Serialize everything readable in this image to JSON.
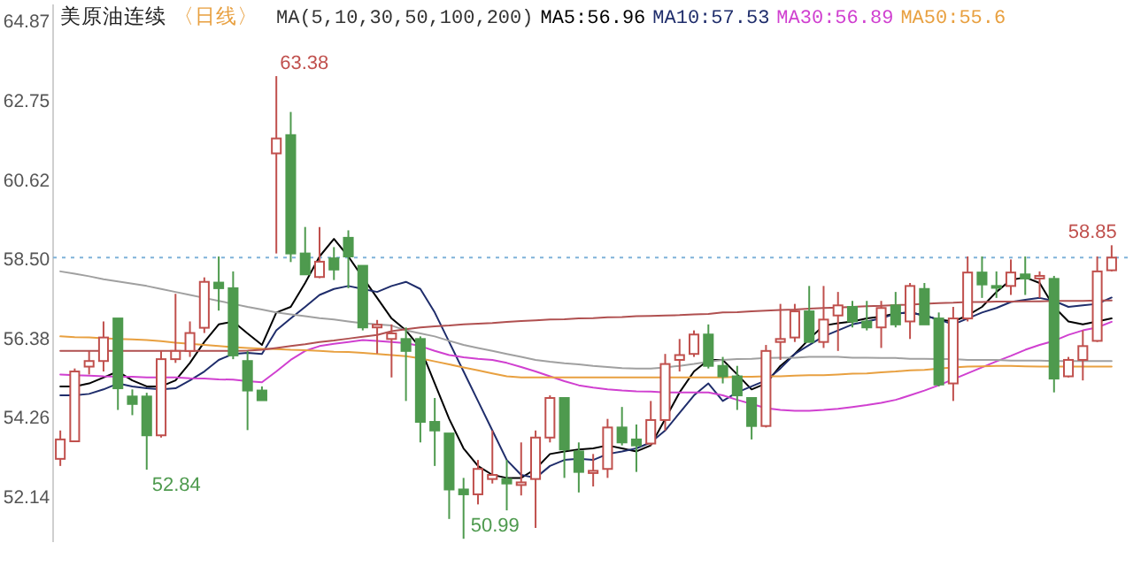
{
  "chart_data": {
    "type": "candlestick",
    "title": "美原油连续",
    "subtitle": "〈日线〉",
    "legend_title": "MA(5,10,30,50,100,200)",
    "legend": "top",
    "categories": [
      null,
      null,
      null,
      null,
      null,
      null,
      null,
      null,
      null,
      null,
      null,
      null,
      null,
      null,
      null,
      null,
      null,
      null,
      null,
      null,
      null,
      null,
      null,
      null,
      null,
      null,
      null,
      null,
      null,
      null,
      null,
      null,
      null,
      null,
      null,
      null,
      null,
      null,
      null,
      null,
      null,
      null,
      null,
      null,
      null,
      null,
      null,
      null,
      null,
      null,
      null,
      null,
      null,
      null,
      null,
      null,
      null,
      null,
      null,
      null,
      null,
      null,
      null,
      null,
      null,
      null,
      null,
      null,
      null,
      null,
      null,
      null,
      null,
      null
    ],
    "ylim": [
      50.9,
      65.3
    ],
    "yticks": [
      64.87,
      62.75,
      60.62,
      {
        "value": 58.5,
        "label": "58.50"
      },
      56.38,
      54.26,
      52.14
    ],
    "ohlc": [
      [
        53.13,
        53.89,
        52.94,
        53.65
      ],
      [
        53.6,
        55.55,
        53.6,
        55.47
      ],
      [
        55.6,
        56.02,
        55.39,
        55.75
      ],
      [
        55.75,
        56.81,
        55.47,
        56.38
      ],
      [
        56.89,
        56.89,
        54.44,
        55.02
      ],
      [
        54.8,
        54.99,
        54.3,
        54.6
      ],
      [
        54.8,
        54.9,
        52.84,
        53.76
      ],
      [
        53.76,
        56.02,
        53.7,
        55.8
      ],
      [
        55.8,
        57.55,
        55.7,
        56.02
      ],
      [
        56.02,
        56.81,
        55.86,
        56.5
      ],
      [
        56.64,
        57.99,
        56.5,
        57.87
      ],
      [
        57.85,
        58.55,
        57.1,
        57.7
      ],
      [
        57.7,
        58.15,
        55.8,
        55.9
      ],
      [
        55.75,
        56.02,
        53.9,
        54.96
      ],
      [
        54.96,
        55.07,
        54.7,
        54.7
      ],
      [
        61.31,
        63.38,
        58.63,
        61.71
      ],
      [
        61.8,
        62.42,
        58.4,
        58.63
      ],
      [
        58.63,
        59.34,
        58.07,
        58.07
      ],
      [
        58.0,
        59.34,
        57.97,
        58.41
      ],
      [
        58.5,
        58.8,
        57.92,
        58.2
      ],
      [
        59.05,
        59.25,
        57.7,
        58.55
      ],
      [
        58.3,
        58.3,
        56.57,
        56.65
      ],
      [
        56.65,
        56.85,
        55.95,
        56.72
      ],
      [
        56.34,
        56.73,
        55.31,
        56.49
      ],
      [
        56.34,
        56.65,
        54.68,
        56.02
      ],
      [
        56.34,
        56.41,
        53.57,
        54.12
      ],
      [
        54.12,
        54.76,
        52.94,
        53.89
      ],
      [
        53.81,
        53.81,
        51.52,
        52.31
      ],
      [
        52.31,
        52.62,
        50.99,
        52.18
      ],
      [
        52.18,
        53.1,
        51.91,
        52.86
      ],
      [
        52.59,
        53.89,
        52.47,
        52.7
      ],
      [
        52.59,
        53.1,
        51.75,
        52.47
      ],
      [
        52.43,
        53.57,
        52.15,
        52.5
      ],
      [
        52.59,
        53.89,
        51.28,
        53.7
      ],
      [
        53.7,
        54.83,
        53.57,
        54.76
      ],
      [
        54.76,
        54.76,
        52.62,
        53.38
      ],
      [
        53.33,
        53.57,
        52.23,
        52.78
      ],
      [
        52.75,
        53.26,
        52.39,
        52.81
      ],
      [
        52.86,
        54.2,
        52.62,
        53.97
      ],
      [
        53.97,
        54.52,
        53.49,
        53.57
      ],
      [
        53.65,
        54.05,
        52.78,
        53.49
      ],
      [
        53.54,
        54.68,
        53.49,
        54.17
      ],
      [
        54.17,
        55.94,
        53.89,
        55.67
      ],
      [
        55.78,
        56.34,
        55.47,
        55.91
      ],
      [
        55.94,
        56.57,
        55.86,
        56.46
      ],
      [
        56.46,
        56.73,
        55.55,
        55.62
      ],
      [
        55.62,
        55.86,
        55.15,
        55.34
      ],
      [
        55.34,
        55.62,
        54.44,
        54.83
      ],
      [
        54.76,
        54.76,
        53.65,
        54.01
      ],
      [
        54.01,
        56.18,
        53.97,
        56.02
      ],
      [
        56.26,
        57.28,
        55.78,
        56.34
      ],
      [
        56.38,
        57.28,
        56.26,
        57.08
      ],
      [
        57.08,
        57.76,
        56.26,
        56.26
      ],
      [
        56.26,
        57.76,
        56.1,
        56.86
      ],
      [
        56.97,
        57.6,
        56.02,
        57.24
      ],
      [
        57.2,
        57.36,
        56.65,
        56.81
      ],
      [
        56.81,
        57.36,
        56.57,
        56.65
      ],
      [
        56.65,
        57.36,
        56.1,
        57.17
      ],
      [
        57.24,
        57.6,
        56.65,
        56.73
      ],
      [
        56.81,
        57.84,
        56.34,
        57.76
      ],
      [
        57.68,
        57.84,
        56.73,
        56.73
      ],
      [
        56.89,
        57.05,
        55.07,
        55.12
      ],
      [
        55.15,
        57.2,
        54.68,
        56.89
      ],
      [
        56.89,
        58.55,
        56.81,
        58.12
      ],
      [
        58.12,
        58.55,
        57.44,
        57.8
      ],
      [
        57.76,
        58.15,
        57.44,
        57.71
      ],
      [
        57.76,
        58.47,
        57.52,
        58.12
      ],
      [
        58.07,
        58.55,
        57.52,
        57.96
      ],
      [
        57.96,
        58.15,
        57.44,
        58.03
      ],
      [
        57.95,
        58.03,
        54.91,
        55.28
      ],
      [
        55.34,
        55.86,
        55.31,
        55.78
      ],
      [
        55.78,
        56.57,
        55.23,
        56.15
      ],
      [
        56.29,
        58.55,
        56.26,
        58.15
      ],
      [
        58.18,
        58.85,
        58.15,
        58.52
      ]
    ],
    "colors": [
      "#c0504d",
      "#c0504d",
      "#c0504d",
      "#c0504d",
      "#4e9a4e",
      "#4e9a4e",
      "#4e9a4e",
      "#c0504d",
      "#c0504d",
      "#c0504d",
      "#c0504d",
      "#4e9a4e",
      "#4e9a4e",
      "#4e9a4e",
      "#4e9a4e",
      "#c0504d",
      "#4e9a4e",
      "#4e9a4e",
      "#c0504d",
      "#4e9a4e",
      "#4e9a4e",
      "#4e9a4e",
      "#c0504d",
      "#c0504d",
      "#4e9a4e",
      "#4e9a4e",
      "#4e9a4e",
      "#4e9a4e",
      "#4e9a4e",
      "#c0504d",
      "#c0504d",
      "#4e9a4e",
      "#c0504d",
      "#c0504d",
      "#c0504d",
      "#4e9a4e",
      "#4e9a4e",
      "#c0504d",
      "#c0504d",
      "#4e9a4e",
      "#4e9a4e",
      "#c0504d",
      "#c0504d",
      "#c0504d",
      "#c0504d",
      "#4e9a4e",
      "#4e9a4e",
      "#4e9a4e",
      "#4e9a4e",
      "#c0504d",
      "#c0504d",
      "#c0504d",
      "#4e9a4e",
      "#c0504d",
      "#c0504d",
      "#4e9a4e",
      "#4e9a4e",
      "#c0504d",
      "#4e9a4e",
      "#c0504d",
      "#4e9a4e",
      "#4e9a4e",
      "#c0504d",
      "#c0504d",
      "#4e9a4e",
      "#4e9a4e",
      "#c0504d",
      "#4e9a4e",
      "#c0504d",
      "#4e9a4e",
      "#c0504d",
      "#c0504d",
      "#c0504d",
      "#c0504d"
    ],
    "series": [
      {
        "type": "line",
        "name": "MA5:56.96",
        "color": "#000000",
        "values": [
          55.07,
          55.07,
          55.15,
          55.31,
          55.47,
          55.23,
          55.07,
          55.07,
          55.23,
          55.7,
          56.26,
          56.73,
          56.81,
          56.49,
          56.18,
          57.05,
          57.2,
          57.84,
          58.55,
          59.02,
          58.55,
          57.99,
          57.44,
          56.89,
          56.57,
          56.1,
          55.15,
          54.2,
          53.41,
          52.94,
          52.7,
          52.62,
          52.62,
          52.86,
          53.26,
          53.33,
          53.38,
          53.41,
          53.49,
          53.41,
          53.33,
          53.49,
          54.2,
          54.91,
          55.47,
          55.78,
          55.78,
          55.39,
          54.99,
          55.15,
          55.62,
          55.94,
          56.34,
          56.7,
          56.76,
          56.81,
          56.89,
          56.94,
          57.02,
          57.05,
          56.97,
          56.86,
          56.81,
          56.97,
          57.2,
          57.6,
          57.92,
          57.99,
          57.84,
          57.2,
          56.81,
          56.73,
          56.81,
          56.89
        ]
      },
      {
        "type": "line",
        "name": "MA10:57.53",
        "color": "#1f2d6b",
        "values": [
          54.83,
          54.83,
          54.87,
          54.99,
          55.15,
          55.07,
          55.02,
          54.99,
          55.02,
          55.23,
          55.47,
          55.78,
          55.94,
          55.97,
          55.94,
          56.57,
          56.89,
          57.2,
          57.52,
          57.68,
          57.76,
          57.68,
          57.6,
          57.76,
          57.87,
          57.68,
          57.05,
          56.26,
          55.47,
          54.68,
          53.89,
          53.1,
          52.7,
          52.62,
          52.94,
          53.1,
          53.13,
          53.1,
          53.26,
          53.33,
          53.41,
          53.57,
          53.89,
          54.36,
          54.83,
          55.15,
          54.68,
          54.91,
          55.07,
          55.23,
          55.55,
          55.94,
          56.18,
          56.41,
          56.57,
          56.73,
          56.81,
          56.89,
          57.02,
          57.05,
          56.97,
          56.86,
          56.73,
          56.89,
          57.05,
          57.17,
          57.33,
          57.39,
          57.44,
          57.36,
          57.2,
          57.24,
          57.28,
          57.45
        ]
      },
      {
        "type": "line",
        "name": "MA30:56.89",
        "color": "#d040d0",
        "values": [
          55.39,
          55.37,
          55.36,
          55.34,
          55.33,
          55.33,
          55.31,
          55.31,
          55.31,
          55.29,
          55.28,
          55.26,
          55.25,
          55.21,
          55.18,
          55.47,
          55.78,
          56.02,
          56.15,
          56.21,
          56.26,
          56.31,
          56.29,
          56.26,
          56.23,
          56.15,
          56.02,
          55.91,
          55.85,
          55.81,
          55.78,
          55.7,
          55.59,
          55.47,
          55.34,
          55.21,
          55.1,
          55.04,
          54.99,
          54.96,
          54.94,
          54.93,
          54.91,
          54.91,
          54.91,
          54.91,
          54.83,
          54.71,
          54.6,
          54.49,
          54.44,
          54.42,
          54.42,
          54.44,
          54.47,
          54.52,
          54.57,
          54.63,
          54.71,
          54.83,
          54.96,
          55.1,
          55.26,
          55.42,
          55.58,
          55.74,
          55.89,
          56.05,
          56.18,
          56.29,
          56.45,
          56.57,
          56.65,
          56.8
        ]
      },
      {
        "type": "line",
        "name": "MA50:55.6",
        "color": "#e8a040",
        "values": [
          56.41,
          56.39,
          56.38,
          56.36,
          56.34,
          56.33,
          56.31,
          56.28,
          56.24,
          56.21,
          56.18,
          56.15,
          56.12,
          56.1,
          56.08,
          56.07,
          56.05,
          56.04,
          56.02,
          56.0,
          55.99,
          55.97,
          55.94,
          55.91,
          55.88,
          55.82,
          55.74,
          55.66,
          55.58,
          55.5,
          55.42,
          55.34,
          55.31,
          55.31,
          55.31,
          55.31,
          55.31,
          55.31,
          55.31,
          55.31,
          55.31,
          55.31,
          55.31,
          55.31,
          55.31,
          55.31,
          55.31,
          55.33,
          55.33,
          55.34,
          55.34,
          55.36,
          55.37,
          55.37,
          55.39,
          55.41,
          55.42,
          55.45,
          55.47,
          55.5,
          55.51,
          55.55,
          55.58,
          55.6,
          55.61,
          55.62,
          55.62,
          55.61,
          55.6,
          55.6,
          55.6,
          55.6,
          55.6,
          55.6
        ]
      },
      {
        "type": "line",
        "color": "#a0a0a0",
        "values": [
          58.15,
          58.09,
          58.02,
          57.94,
          57.88,
          57.82,
          57.76,
          57.68,
          57.6,
          57.52,
          57.44,
          57.36,
          57.28,
          57.2,
          57.13,
          57.05,
          57.0,
          56.95,
          56.9,
          56.86,
          56.81,
          56.76,
          56.73,
          56.7,
          56.57,
          56.49,
          56.41,
          56.29,
          56.18,
          56.1,
          56.02,
          55.94,
          55.86,
          55.78,
          55.73,
          55.69,
          55.66,
          55.62,
          55.59,
          55.56,
          55.55,
          55.55,
          55.58,
          55.62,
          55.67,
          55.73,
          55.78,
          55.8,
          55.81,
          55.83,
          55.84,
          55.84,
          55.86,
          55.86,
          55.86,
          55.84,
          55.84,
          55.83,
          55.83,
          55.81,
          55.81,
          55.8,
          55.8,
          55.78,
          55.78,
          55.78,
          55.76,
          55.76,
          55.76,
          55.75,
          55.75,
          55.75,
          55.75,
          55.75
        ]
      },
      {
        "type": "line",
        "color": "#b05050",
        "values": [
          56.02,
          56.02,
          56.02,
          56.02,
          56.02,
          56.02,
          56.02,
          56.02,
          56.02,
          56.02,
          56.02,
          56.02,
          56.02,
          56.03,
          56.05,
          56.1,
          56.15,
          56.2,
          56.26,
          56.3,
          56.35,
          56.4,
          56.45,
          56.55,
          56.6,
          56.65,
          56.68,
          56.7,
          56.73,
          56.75,
          56.77,
          56.8,
          56.82,
          56.84,
          56.86,
          56.87,
          56.89,
          56.9,
          56.92,
          56.93,
          56.95,
          56.96,
          56.97,
          56.98,
          57.0,
          57.01,
          57.05,
          57.06,
          57.08,
          57.1,
          57.12,
          57.13,
          57.15,
          57.17,
          57.18,
          57.2,
          57.22,
          57.23,
          57.25,
          57.26,
          57.28,
          57.3,
          57.31,
          57.33,
          57.33,
          57.34,
          57.34,
          57.35,
          57.35,
          57.36,
          57.36,
          57.36,
          57.37,
          57.37
        ]
      }
    ],
    "ref_lines": [
      {
        "axis": "y",
        "value": 58.52,
        "color": "#7fb2d9",
        "line_style": "dotted"
      }
    ],
    "annotations": [
      "63.38",
      "52.84",
      "50.99",
      "58.85"
    ]
  }
}
